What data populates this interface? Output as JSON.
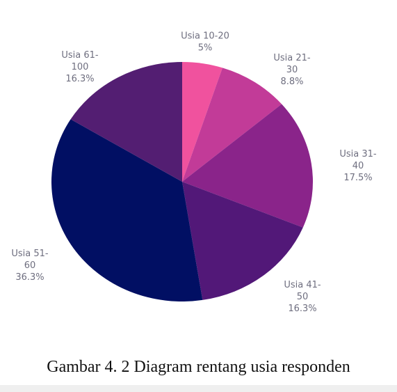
{
  "caption": "Gambar 4. 2 Diagram rentang usia responden",
  "chart_data": {
    "type": "pie",
    "title": "",
    "slices": [
      {
        "label_lines": [
          "Usia 10-20",
          "5%"
        ],
        "value": 5.0,
        "color": "#f0529e"
      },
      {
        "label_lines": [
          "Usia 21-",
          "30",
          "8.8%"
        ],
        "value": 8.8,
        "color": "#c23b98"
      },
      {
        "label_lines": [
          "Usia 31-",
          "40",
          "17.5%"
        ],
        "value": 17.5,
        "color": "#8a248a"
      },
      {
        "label_lines": [
          "Usia 41-",
          "50",
          "16.3%"
        ],
        "value": 16.3,
        "color": "#521878"
      },
      {
        "label_lines": [
          "Usia 51-",
          "60",
          "36.3%"
        ],
        "value": 36.3,
        "color": "#010f63"
      },
      {
        "label_lines": [
          "Usia 61-",
          "100",
          "16.3%"
        ],
        "value": 16.3,
        "color": "#531e72"
      }
    ]
  }
}
